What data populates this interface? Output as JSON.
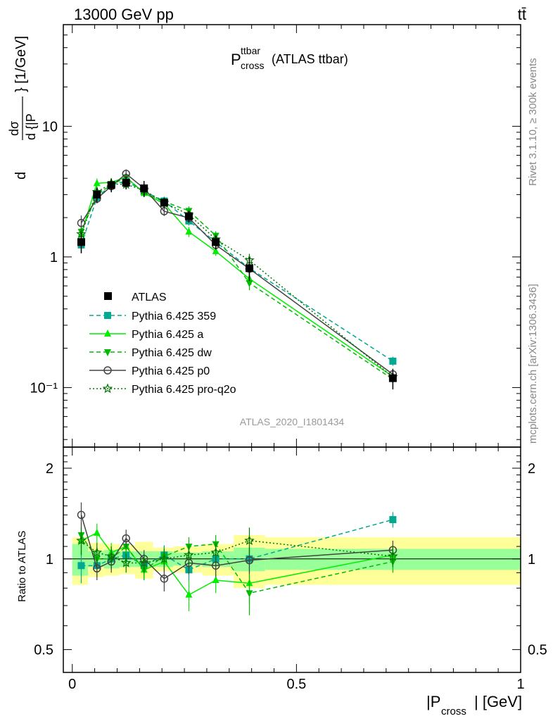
{
  "header": {
    "energy": "13000 GeV pp",
    "process": "tt̄"
  },
  "side": {
    "rivet": "Rivet 3.1.10, ≥ 300k events",
    "mcplots": "mcplots.cern.ch [arXiv:1306.3436]"
  },
  "plot": {
    "title_main": "P",
    "title_sup": "ttbar",
    "title_sub": "cross",
    "title_rest": "(ATLAS ttbar)",
    "watermark": "ATLAS_2020_I1801434",
    "ylabel_pre": "d",
    "ylabel_frac_num": "dσ",
    "ylabel_frac_den": "d {|P",
    "ylabel_unit": "} [1/GeV]",
    "ratio_ylabel": "Ratio to ATLAS",
    "xlabel": "|P",
    "xlabel_sub": "cross",
    "xlabel_rest": "| [GeV]"
  },
  "chart_data": {
    "type": "line",
    "x_range": [
      -0.02,
      1.0
    ],
    "main": {
      "y_scale": "log",
      "y_range": [
        0.035,
        60
      ],
      "yticks": [
        {
          "value": 10,
          "label": "10"
        },
        {
          "value": 1,
          "label": "1"
        },
        {
          "value": 0.1,
          "label": "10⁻¹"
        }
      ]
    },
    "ratio": {
      "y_scale": "log",
      "y_range": [
        0.42,
        2.35
      ],
      "yticks": [
        {
          "value": 2,
          "label": "2"
        },
        {
          "value": 1,
          "label": "1"
        },
        {
          "value": 0.5,
          "label": "0.5"
        }
      ]
    },
    "xticks": [
      {
        "value": 0,
        "label": "0"
      },
      {
        "value": 0.5,
        "label": "0.5"
      },
      {
        "value": 1,
        "label": "1"
      }
    ],
    "bin_edges": [
      0.0,
      0.035,
      0.07,
      0.105,
      0.14,
      0.18,
      0.225,
      0.29,
      0.36,
      0.43,
      1.0
    ],
    "x": [
      0.02,
      0.055,
      0.087,
      0.12,
      0.16,
      0.205,
      0.26,
      0.32,
      0.395,
      0.715
    ],
    "data": {
      "name": "ATLAS",
      "values": [
        1.3,
        3.0,
        3.55,
        3.7,
        3.35,
        2.6,
        2.05,
        1.3,
        0.82,
        0.118
      ],
      "stat_band": [
        0.12,
        0.06,
        0.07,
        0.06,
        0.06,
        0.06,
        0.05,
        0.06,
        0.09,
        0.08
      ],
      "total_band": [
        0.18,
        0.13,
        0.12,
        0.11,
        0.14,
        0.09,
        0.1,
        0.12,
        0.2,
        0.18
      ]
    },
    "series": [
      {
        "name": "Pythia 6.425 359",
        "color": "#00a98f",
        "dash": "6,4",
        "marker": "square",
        "ratio": [
          0.95,
          0.95,
          1.0,
          1.03,
          0.95,
          1.03,
          0.92,
          1.0,
          1.0,
          1.35
        ],
        "err": [
          0.12,
          0.08,
          0.08,
          0.07,
          0.07,
          0.08,
          0.08,
          0.08,
          0.1,
          0.08
        ]
      },
      {
        "name": "Pythia 6.425 a",
        "color": "#00ee00",
        "dash": "",
        "marker": "triangle-up",
        "ratio": [
          1.15,
          1.22,
          1.05,
          1.1,
          0.92,
          0.98,
          0.76,
          0.85,
          0.83,
          1.03
        ],
        "err": [
          0.12,
          0.09,
          0.08,
          0.07,
          0.07,
          0.08,
          0.09,
          0.08,
          0.12,
          0.08
        ]
      },
      {
        "name": "Pythia 6.425 dw",
        "color": "#00bb00",
        "dash": "6,4",
        "marker": "triangle-down",
        "ratio": [
          1.2,
          1.0,
          1.0,
          1.1,
          0.92,
          1.02,
          1.1,
          1.12,
          0.77,
          0.98
        ],
        "err": [
          0.12,
          0.08,
          0.08,
          0.07,
          0.07,
          0.08,
          0.08,
          0.08,
          0.12,
          0.08
        ]
      },
      {
        "name": "Pythia 6.425 p0",
        "color": "#444444",
        "dash": "",
        "marker": "circle-open",
        "ratio": [
          1.4,
          0.93,
          0.98,
          1.17,
          1.0,
          0.86,
          0.97,
          0.95,
          0.99,
          1.07
        ],
        "err": [
          0.14,
          0.08,
          0.08,
          0.08,
          0.07,
          0.08,
          0.08,
          0.08,
          0.1,
          0.08
        ]
      },
      {
        "name": "Pythia 6.425 pro-q2o",
        "color": "#007700",
        "dash": "2,3",
        "marker": "star-open",
        "ratio": [
          1.15,
          1.05,
          1.02,
          0.97,
          0.97,
          1.0,
          1.03,
          1.05,
          1.15,
          1.02
        ],
        "err": [
          0.12,
          0.08,
          0.08,
          0.07,
          0.07,
          0.08,
          0.08,
          0.08,
          0.12,
          0.08
        ]
      }
    ],
    "legend_placement": "bottom-left"
  },
  "colors": {
    "band_total": "#ffff99",
    "band_stat": "#99ff99"
  }
}
